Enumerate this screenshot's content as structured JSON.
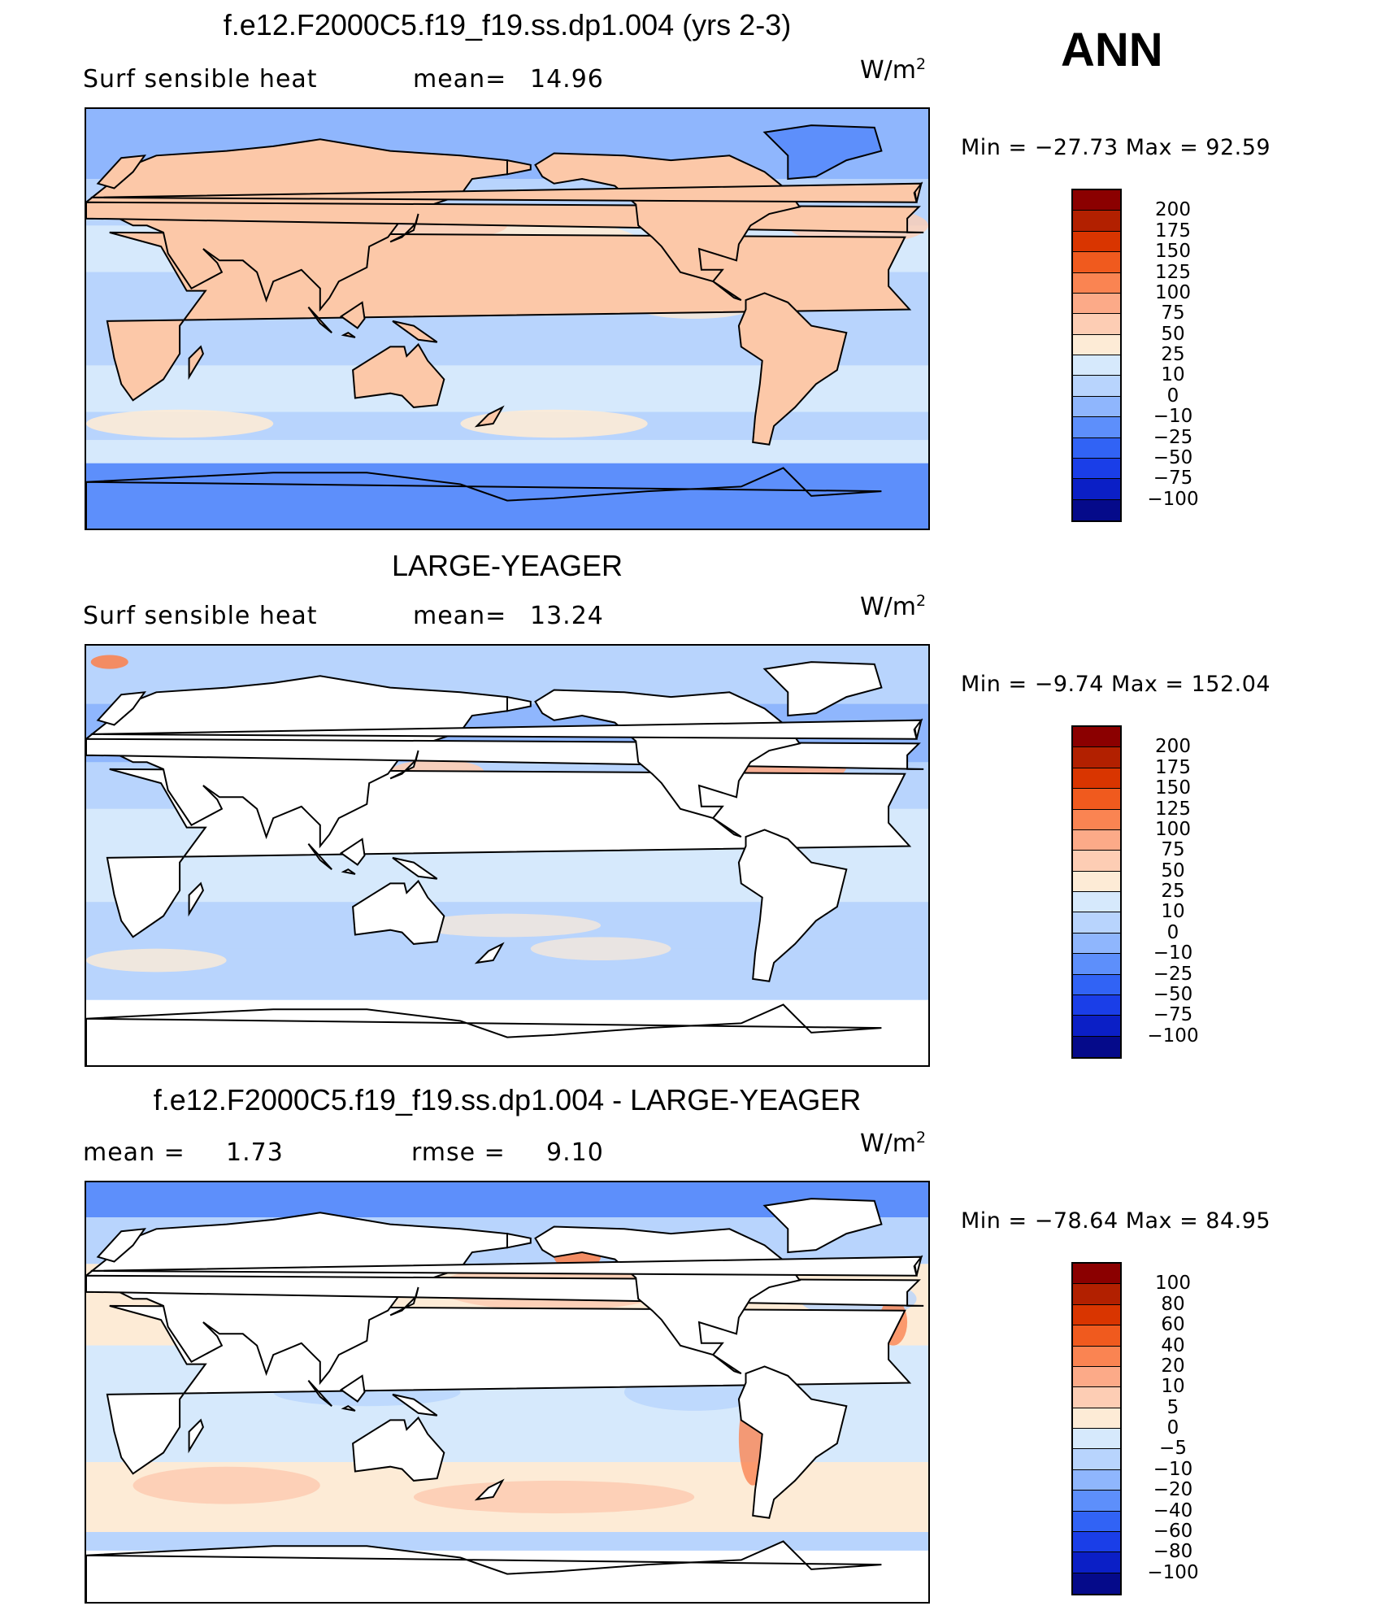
{
  "season": "ANN",
  "units": {
    "base": "W/m",
    "exp": "2"
  },
  "panels": [
    {
      "title": "f.e12.F2000C5.f19_f19.ss.dp1.004 (yrs 2-3)",
      "left_label": "Surf  sensible  heat",
      "stat_label": "mean=",
      "stat_value": "14.96",
      "min_text": "Min  =  −27.73  Max  =    92.59",
      "colorbar": {
        "colors": [
          "#8b0000",
          "#b22000",
          "#d93500",
          "#f05a1e",
          "#fa8452",
          "#fcaa88",
          "#fdcdb4",
          "#fdebd6",
          "#d6e9fc",
          "#b8d4fd",
          "#8fb6fd",
          "#5d8ffb",
          "#3163f5",
          "#1a3ee8",
          "#0b1fc6",
          "#050a8a"
        ],
        "labels": [
          "200",
          "175",
          "150",
          "125",
          "100",
          "75",
          "50",
          "25",
          "10",
          "0",
          "−10",
          "−25",
          "−50",
          "−75",
          "−100"
        ]
      },
      "field": "model"
    },
    {
      "title": "LARGE-YEAGER",
      "left_label": "Surf  sensible  heat",
      "stat_label": "mean=",
      "stat_value": "13.24",
      "min_text": "Min  =    −9.74  Max  =  152.04",
      "colorbar": {
        "colors": [
          "#8b0000",
          "#b22000",
          "#d93500",
          "#f05a1e",
          "#fa8452",
          "#fcaa88",
          "#fdcdb4",
          "#fdebd6",
          "#d6e9fc",
          "#b8d4fd",
          "#8fb6fd",
          "#5d8ffb",
          "#3163f5",
          "#1a3ee8",
          "#0b1fc6",
          "#050a8a"
        ],
        "labels": [
          "200",
          "175",
          "150",
          "125",
          "100",
          "75",
          "50",
          "25",
          "10",
          "0",
          "−10",
          "−25",
          "−50",
          "−75",
          "−100"
        ]
      },
      "field": "obs"
    },
    {
      "title": "f.e12.F2000C5.f19_f19.ss.dp1.004 - LARGE-YEAGER",
      "left_label": "mean  =",
      "left_value": "1.73",
      "stat_label": "rmse  =",
      "stat_value": "9.10",
      "min_text": "Min  =  −78.64  Max  =    84.95",
      "colorbar": {
        "colors": [
          "#8b0000",
          "#b22000",
          "#d93500",
          "#f05a1e",
          "#fa8452",
          "#fcaa88",
          "#fdcdb4",
          "#fdebd6",
          "#d6e9fc",
          "#b8d4fd",
          "#8fb6fd",
          "#5d8ffb",
          "#3163f5",
          "#1a3ee8",
          "#0b1fc6",
          "#050a8a"
        ],
        "labels": [
          "100",
          "80",
          "60",
          "40",
          "20",
          "10",
          "5",
          "0",
          "−5",
          "−10",
          "−20",
          "−40",
          "−60",
          "−80",
          "−100"
        ]
      },
      "field": "diff"
    }
  ]
}
